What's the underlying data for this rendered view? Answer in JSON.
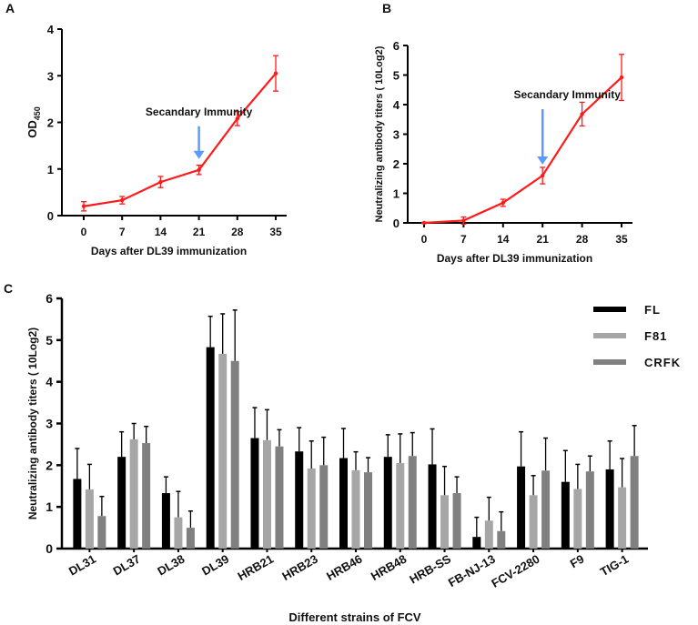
{
  "chart_data": [
    {
      "panel": "A",
      "type": "line",
      "xlabel": "Days after DL39 immunization",
      "ylabel": "OD450",
      "ylabel_main": "OD",
      "ylabel_sub": "450",
      "x": [
        0,
        7,
        14,
        21,
        28,
        35
      ],
      "xticks": [
        "0",
        "7",
        "14",
        "21",
        "28",
        "35"
      ],
      "yticks": [
        "0",
        "1",
        "2",
        "3",
        "4"
      ],
      "ylim": [
        0,
        4
      ],
      "series": [
        {
          "name": "OD450",
          "color": "#ff1a1a",
          "values": [
            0.2,
            0.33,
            0.72,
            0.98,
            2.08,
            3.05
          ],
          "errors": [
            0.1,
            0.08,
            0.12,
            0.1,
            0.15,
            0.38
          ]
        }
      ],
      "annotation": {
        "text": "Secandary Immunity",
        "x": 21,
        "arrow_color": "#5b9bff"
      }
    },
    {
      "panel": "B",
      "type": "line",
      "xlabel": "Days after DL39 immunization",
      "ylabel": "Neutralizing antibody titers ( 10Log2)",
      "x": [
        0,
        7,
        14,
        21,
        28,
        35
      ],
      "xticks": [
        "0",
        "7",
        "14",
        "21",
        "28",
        "35"
      ],
      "yticks": [
        "0",
        "1",
        "2",
        "3",
        "4",
        "5",
        "6"
      ],
      "ylim": [
        0,
        6
      ],
      "series": [
        {
          "name": "Titer",
          "color": "#ff1a1a",
          "values": [
            0,
            0.08,
            0.68,
            1.6,
            3.68,
            4.92
          ],
          "errors": [
            0.02,
            0.12,
            0.12,
            0.28,
            0.4,
            0.78
          ]
        }
      ],
      "annotation": {
        "text": "Secandary Immunity",
        "x": 21,
        "arrow_color": "#5b9bff"
      }
    },
    {
      "panel": "C",
      "type": "bar",
      "xlabel": "Different strains of FCV",
      "ylabel": "Neutralizing antibody titers ( 10Log2)",
      "yticks": [
        "0",
        "1",
        "2",
        "3",
        "4",
        "5",
        "6"
      ],
      "ylim": [
        0,
        6
      ],
      "legend": "top-right",
      "categories": [
        "DL31",
        "DL37",
        "DL38",
        "DL39",
        "HRB21",
        "HRB23",
        "HRB46",
        "HRB48",
        "HRB-SS",
        "FB-NJ-13",
        "FCV-2280",
        "F9",
        "TIG-1"
      ],
      "series": [
        {
          "name": "FL",
          "color": "#000000",
          "values": [
            1.67,
            2.2,
            1.33,
            4.83,
            2.65,
            2.33,
            2.17,
            2.2,
            2.02,
            0.28,
            1.97,
            1.6,
            1.9
          ],
          "errors": [
            0.73,
            0.6,
            0.39,
            0.74,
            0.73,
            0.57,
            0.71,
            0.53,
            0.85,
            0.47,
            0.83,
            0.75,
            0.68
          ]
        },
        {
          "name": "F81",
          "color": "#a6a6a6",
          "values": [
            1.42,
            2.62,
            0.75,
            4.67,
            2.6,
            1.92,
            1.88,
            2.05,
            1.28,
            0.67,
            1.28,
            1.43,
            1.47
          ],
          "errors": [
            0.6,
            0.38,
            0.62,
            0.96,
            0.73,
            0.66,
            0.44,
            0.7,
            0.69,
            0.56,
            0.47,
            0.59,
            0.69
          ]
        },
        {
          "name": "CRFK",
          "color": "#808080",
          "values": [
            0.78,
            2.53,
            0.5,
            4.5,
            2.45,
            2.0,
            1.83,
            2.22,
            1.33,
            0.42,
            1.87,
            1.85,
            2.22
          ],
          "errors": [
            0.47,
            0.4,
            0.4,
            1.22,
            0.4,
            0.67,
            0.35,
            0.56,
            0.39,
            0.46,
            0.78,
            0.37,
            0.73
          ]
        }
      ]
    }
  ]
}
